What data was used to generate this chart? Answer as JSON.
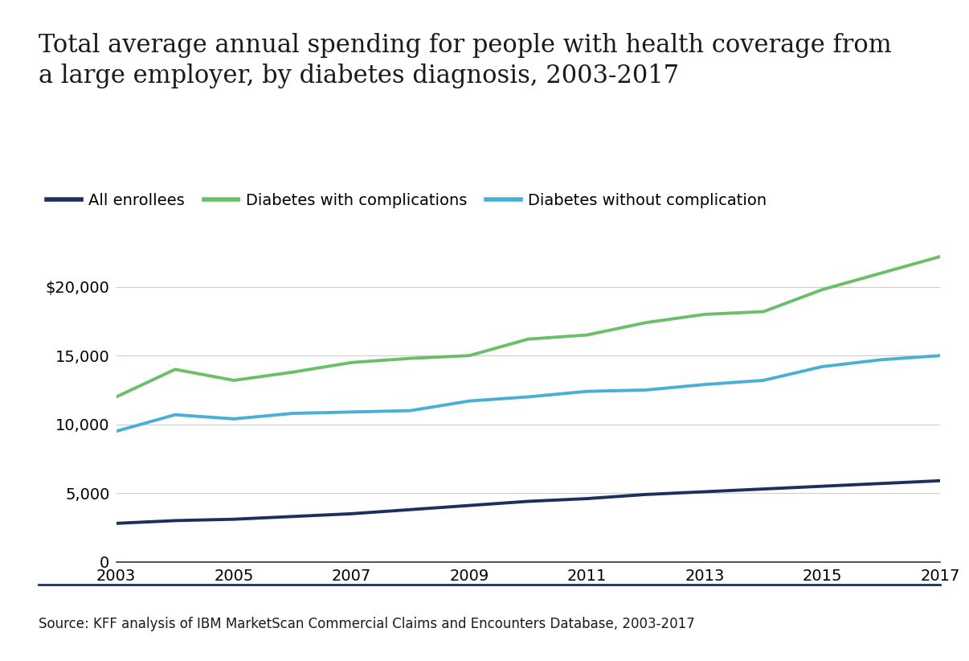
{
  "title": "Total average annual spending for people with health coverage from\na large employer, by diabetes diagnosis, 2003-2017",
  "source": "Source: KFF analysis of IBM MarketScan Commercial Claims and Encounters Database, 2003-2017",
  "years": [
    2003,
    2004,
    2005,
    2006,
    2007,
    2008,
    2009,
    2010,
    2011,
    2012,
    2013,
    2014,
    2015,
    2016,
    2017
  ],
  "all_enrollees": [
    2800,
    3000,
    3100,
    3300,
    3500,
    3800,
    4100,
    4400,
    4600,
    4900,
    5100,
    5300,
    5500,
    5700,
    5900
  ],
  "diabetes_with_complications": [
    12000,
    14000,
    13200,
    13800,
    14500,
    14800,
    15000,
    16200,
    16500,
    17400,
    18000,
    18200,
    19800,
    21000,
    22200
  ],
  "diabetes_without_complication": [
    9500,
    10700,
    10400,
    10800,
    10900,
    11000,
    11700,
    12000,
    12400,
    12500,
    12900,
    13200,
    14200,
    14700,
    15000
  ],
  "legend_labels": [
    "All enrollees",
    "Diabetes with complications",
    "Diabetes without complication"
  ],
  "colors": {
    "all_enrollees": "#1c2f5e",
    "diabetes_with_complications": "#6abf69",
    "diabetes_without_complication": "#4aafd4"
  },
  "line_width": 2.8,
  "ylim": [
    0,
    25000
  ],
  "ytick_values": [
    0,
    5000,
    10000,
    15000,
    20000
  ],
  "ytick_labels": [
    "0",
    "5,000",
    "10,000",
    "15,000",
    "$20,000"
  ],
  "xticks": [
    2003,
    2005,
    2007,
    2009,
    2011,
    2013,
    2015,
    2017
  ],
  "background_color": "#ffffff",
  "title_fontsize": 22,
  "legend_fontsize": 14,
  "tick_fontsize": 14,
  "source_fontsize": 12,
  "divider_color": "#1c2f5e"
}
